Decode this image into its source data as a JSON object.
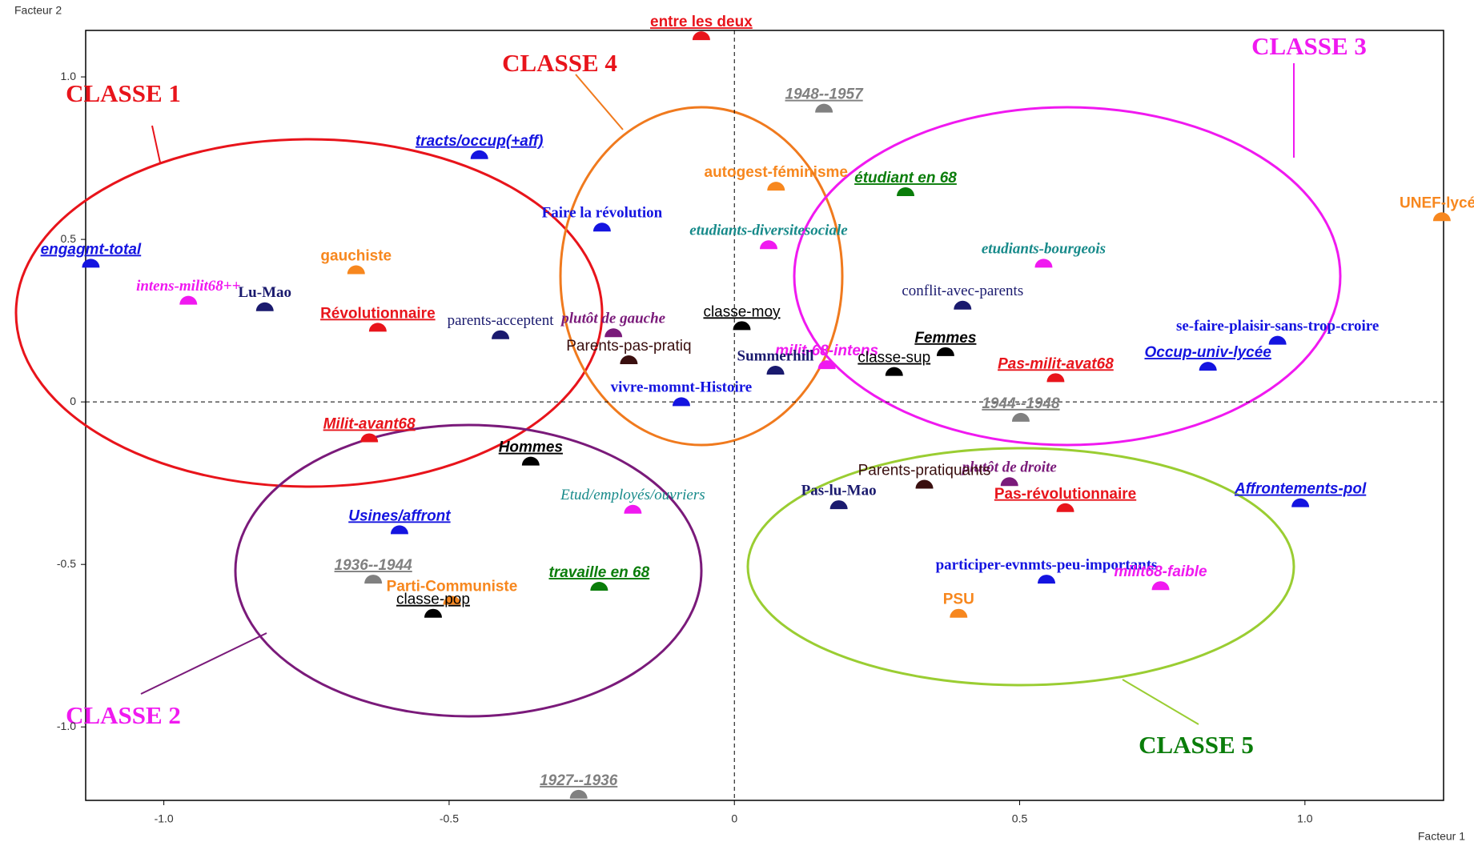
{
  "chart_data": {
    "type": "scatter",
    "xlabel": "Facteur 1",
    "ylabel": "Facteur 2",
    "xlim": [
      -1.137,
      1.243
    ],
    "ylim": [
      -1.226,
      1.143
    ],
    "xticks": [
      {
        "value": -1,
        "label": "-1.0"
      },
      {
        "value": -0.5,
        "label": "-0.5"
      },
      0,
      {
        "value": 0.5,
        "label": "0.5"
      },
      {
        "value": 1,
        "label": "1.0"
      }
    ],
    "yticks": [
      {
        "value": -1,
        "label": "-1.0"
      },
      {
        "value": -0.5,
        "label": "-0.5"
      },
      0,
      {
        "value": 0.5,
        "label": "0.5"
      },
      {
        "value": 1,
        "label": "1.0"
      }
    ],
    "labels": [
      "entre les deux",
      "1948--1957",
      "tracts/occup(+aff)",
      "autogest-féminisme",
      "étudiant en 68",
      "Faire la révolution",
      "etudiants-diversitesociale",
      "UNEF-lycée",
      "etudiants-bourgeois",
      "engagmt-total",
      "gauchiste",
      "intens-milit68++",
      "Lu-Mao",
      "conflit-avec-parents",
      "Révolutionnaire",
      "plutôt de gauche",
      "classe-moy",
      "se-faire-plaisir-sans-trop-croire",
      "parents-acceptent",
      "Parents-pas-pratiq",
      "Femmes",
      "milit-68-intens",
      "classe-sup",
      "Pas-milit-avat68",
      "Occup-univ-lycée",
      "Summerhill",
      "vivre-momnt-Histoire",
      "1944--1948",
      "Milit-avant68",
      "Hommes",
      "plutôt de droite",
      "Parents-pratiquants",
      "Etud/employés/ouvriers",
      "Pas-lu-Mao",
      "Pas-révolutionnaire",
      "Affrontements-pol",
      "Usines/affront",
      "participer-evnmts-peu-importants",
      "1936--1944",
      "Parti-Communiste",
      "travaille en 68",
      "milit68-faible",
      "classe-pop",
      "PSU",
      "1927--1936"
    ],
    "x": [
      -0.058,
      0.157,
      -0.447,
      0.073,
      0.3,
      -0.232,
      0.06,
      1.24,
      0.542,
      -1.128,
      -0.663,
      -0.957,
      -0.823,
      0.4,
      -0.625,
      -0.212,
      0.013,
      0.952,
      -0.41,
      -0.185,
      0.37,
      0.162,
      0.28,
      0.563,
      0.83,
      0.072,
      -0.093,
      0.502,
      -0.64,
      -0.357,
      0.482,
      0.333,
      -0.178,
      0.183,
      0.58,
      0.992,
      -0.587,
      0.547,
      -0.633,
      -0.495,
      -0.237,
      0.747,
      -0.528,
      0.393,
      -0.273
    ],
    "values": [
      1.123,
      0.9,
      0.757,
      0.66,
      0.643,
      0.534,
      0.48,
      0.566,
      0.423,
      0.423,
      0.403,
      0.309,
      0.289,
      0.294,
      0.226,
      0.209,
      0.231,
      0.186,
      0.203,
      0.126,
      0.151,
      0.111,
      0.09,
      0.071,
      0.106,
      0.094,
      -0.003,
      -0.051,
      -0.114,
      -0.186,
      -0.249,
      -0.257,
      -0.334,
      -0.32,
      -0.329,
      -0.314,
      -0.397,
      -0.549,
      -0.549,
      -0.614,
      -0.571,
      -0.569,
      -0.654,
      -0.654,
      -1.211
    ],
    "colors": [
      "#e8141b",
      "#808080",
      "#1414e0",
      "#f7871e",
      "#0a7d0a",
      "#1414e0",
      "#f019f0",
      "#f7871e",
      "#f019f0",
      "#1414e0",
      "#f7871e",
      "#f019f0",
      "#1a1a6e",
      "#1a1a6e",
      "#e8141b",
      "#7a1a7a",
      "#000000",
      "#1414e0",
      "#1a1a6e",
      "#3a0f0f",
      "#000000",
      "#f019f0",
      "#000000",
      "#e8141b",
      "#1414e0",
      "#1a1a6e",
      "#1414e0",
      "#808080",
      "#e8141b",
      "#000000",
      "#7a1a7a",
      "#3a0f0f",
      "#f019f0",
      "#1a1a6e",
      "#e8141b",
      "#1414e0",
      "#1414e0",
      "#1414e0",
      "#808080",
      "#f7871e",
      "#0a7d0a",
      "#f019f0",
      "#000000",
      "#f7871e",
      "#808080"
    ],
    "label_colors": [
      "#e8141b",
      "#808080",
      "#1414e0",
      "#f7871e",
      "#0a7d0a",
      "#1414e0",
      "#178a8a",
      "#f7871e",
      "#178a8a",
      "#1414e0",
      "#f7871e",
      "#f019f0",
      "#1a1a6e",
      "#1a1a6e",
      "#e8141b",
      "#7a1a7a",
      "#000000",
      "#1414e0",
      "#1a1a6e",
      "#3a0f0f",
      "#000000",
      "#f019f0",
      "#000000",
      "#e8141b",
      "#1414e0",
      "#1a1a6e",
      "#1414e0",
      "#808080",
      "#e8141b",
      "#000000",
      "#7a1a7a",
      "#3a0f0f",
      "#178a8a",
      "#1a1a6e",
      "#e8141b",
      "#1414e0",
      "#1414e0",
      "#1414e0",
      "#808080",
      "#f7871e",
      "#0a7d0a",
      "#f019f0",
      "#000000",
      "#f7871e",
      "#808080"
    ],
    "styles": [
      "bu",
      "biu",
      "biu",
      "b",
      "biu",
      "bs",
      "bis",
      "b",
      "bis",
      "biu",
      "b",
      "bis",
      "bs",
      "s",
      "bu",
      "bis",
      "u",
      "bs",
      "s",
      "",
      "biu",
      "bi",
      "u",
      "biu",
      "biu",
      "bs",
      "bs",
      "biu",
      "biu",
      "biu",
      "bis",
      "",
      "is",
      "bs",
      "bu",
      "biu",
      "biu",
      "bs",
      "biu",
      "b",
      "biu",
      "bi",
      "u",
      "b",
      "biu"
    ],
    "annotations": [
      {
        "text": "CLASSE 1",
        "color": "#e8141b"
      },
      {
        "text": "CLASSE 2",
        "color": "#f019f0"
      },
      {
        "text": "CLASSE 3",
        "color": "#f019f0"
      },
      {
        "text": "CLASSE 4",
        "color": "#e8141b"
      },
      {
        "text": "CLASSE 5",
        "color": "#0a7d0a"
      }
    ]
  }
}
